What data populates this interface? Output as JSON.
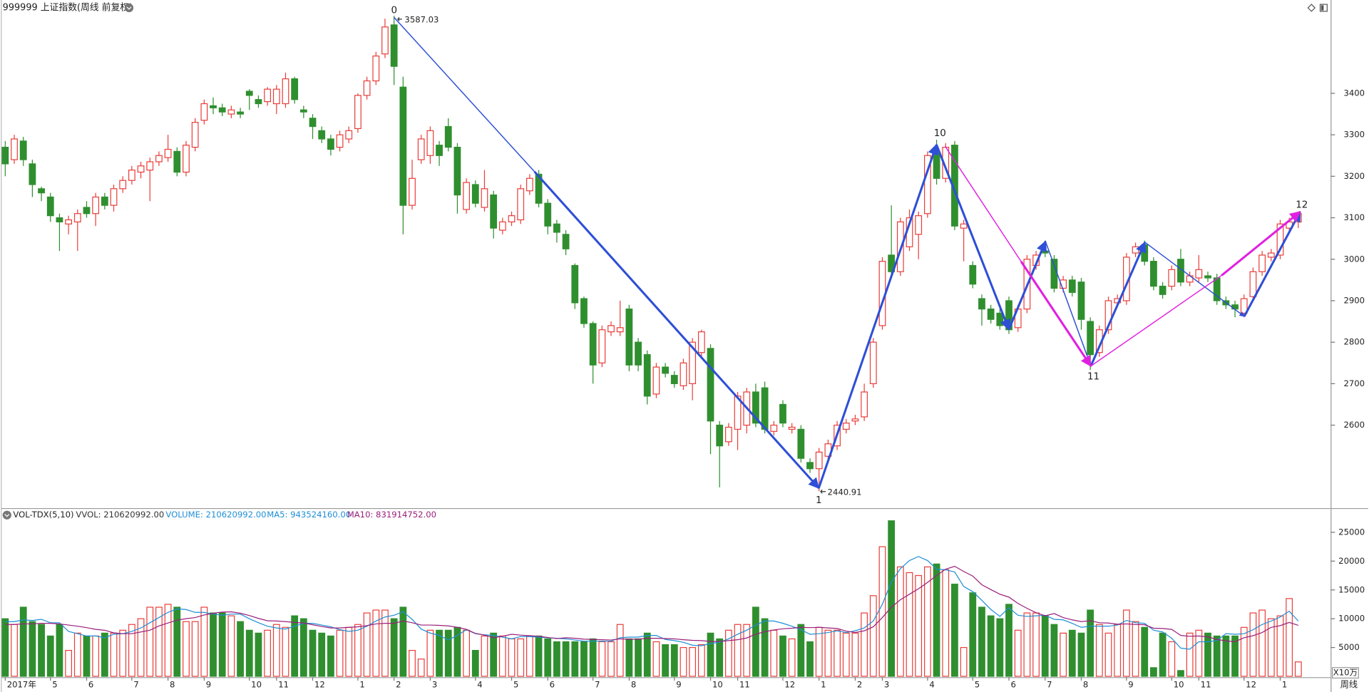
{
  "chart_data": [
    {
      "type": "candlestick",
      "title": "999999 上证指数(周线 前复权)",
      "up_color": "#e8403c",
      "down_color": "#2f8f2f",
      "ylim": [
        2400,
        3625
      ],
      "yticks": [
        2600,
        2700,
        2800,
        2900,
        3000,
        3100,
        3200,
        3300,
        3400
      ],
      "annotations": [
        "0",
        "3587.03",
        "1",
        "2440.91",
        "10",
        "11",
        "12"
      ],
      "categories": [
        "2017年",
        null,
        null,
        null,
        null,
        "5",
        null,
        null,
        null,
        "6",
        null,
        null,
        null,
        null,
        "7",
        null,
        null,
        null,
        "8",
        null,
        null,
        null,
        "9",
        null,
        null,
        null,
        null,
        "10",
        null,
        null,
        "11",
        null,
        null,
        null,
        "12",
        null,
        null,
        null,
        null,
        "1",
        null,
        null,
        null,
        "2",
        null,
        null,
        null,
        "3",
        null,
        null,
        null,
        null,
        "4",
        null,
        null,
        null,
        "5",
        null,
        null,
        null,
        "6",
        null,
        null,
        null,
        null,
        "7",
        null,
        null,
        null,
        "8",
        null,
        null,
        null,
        null,
        "9",
        null,
        null,
        null,
        "10",
        null,
        null,
        "11",
        null,
        null,
        null,
        null,
        "12",
        null,
        null,
        null,
        "1",
        null,
        null,
        null,
        "2",
        null,
        null,
        "3",
        null,
        null,
        null,
        null,
        "4",
        null,
        null,
        null,
        null,
        "5",
        null,
        null,
        null,
        "6",
        null,
        null,
        null,
        "7",
        null,
        null,
        null,
        "8",
        null,
        null,
        null,
        null,
        "9",
        null,
        null,
        null,
        null,
        "10",
        null,
        null,
        "11",
        null,
        null,
        null,
        null,
        "12",
        null,
        null,
        null,
        "1",
        null,
        null
      ],
      "open": [
        3270,
        3240,
        3285,
        3230,
        3170,
        3150,
        3100,
        3085,
        3090,
        3125,
        3110,
        3150,
        3130,
        3170,
        3190,
        3210,
        3215,
        3235,
        3245,
        3260,
        3210,
        3270,
        3335,
        3370,
        3365,
        3350,
        3355,
        3405,
        3385,
        3380,
        3375,
        3375,
        3435,
        3360,
        3340,
        3310,
        3290,
        3270,
        3290,
        3315,
        3395,
        3430,
        3495,
        3565,
        3415,
        3130,
        3240,
        3250,
        3275,
        3320,
        3270,
        3120,
        3180,
        3125,
        3155,
        3070,
        3090,
        3095,
        3165,
        3205,
        3135,
        3085,
        3060,
        2985,
        2905,
        2845,
        2750,
        2825,
        2825,
        2880,
        2800,
        2770,
        2675,
        2740,
        2720,
        2695,
        2700,
        2775,
        2785,
        2600,
        2560,
        2590,
        2600,
        2680,
        2690,
        2585,
        2650,
        2590,
        2590,
        2510,
        2495,
        2525,
        2550,
        2590,
        2610,
        2620,
        2700,
        2840,
        3010,
        2970,
        3030,
        3060,
        3110,
        3260,
        3195,
        3275,
        3075,
        2985,
        2905,
        2880,
        2870,
        2900,
        2835,
        2880,
        2985,
        3020,
        3000,
        2930,
        2950,
        2945,
        2850,
        2775,
        2830,
        2895,
        2900,
        3015,
        3035,
        2995,
        2935,
        2935,
        3000,
        2945,
        2955,
        2960,
        2955,
        2900,
        2890,
        2870,
        2910,
        2970,
        3005,
        3010,
        3075,
        3090
      ],
      "high": [
        3285,
        3300,
        3295,
        3240,
        3175,
        3160,
        3110,
        3105,
        3120,
        3140,
        3160,
        3160,
        3180,
        3200,
        3225,
        3235,
        3245,
        3260,
        3300,
        3270,
        3285,
        3340,
        3385,
        3390,
        3375,
        3370,
        3365,
        3410,
        3395,
        3415,
        3420,
        3450,
        3440,
        3370,
        3350,
        3320,
        3300,
        3310,
        3320,
        3400,
        3440,
        3500,
        3580,
        3587.03,
        3440,
        3240,
        3300,
        3320,
        3285,
        3340,
        3280,
        3195,
        3190,
        3215,
        3165,
        3100,
        3115,
        3180,
        3205,
        3215,
        3145,
        3095,
        3070,
        2990,
        2910,
        2850,
        2840,
        2850,
        2900,
        2890,
        2810,
        2780,
        2750,
        2750,
        2730,
        2760,
        2810,
        2830,
        2795,
        2610,
        2605,
        2680,
        2690,
        2700,
        2705,
        2610,
        2660,
        2605,
        2600,
        2520,
        2545,
        2565,
        2610,
        2615,
        2625,
        2700,
        2810,
        3005,
        3130,
        3100,
        3120,
        3115,
        3260,
        3288,
        3280,
        3285,
        3095,
        2995,
        2915,
        2890,
        2880,
        2910,
        2890,
        3010,
        3020,
        3045,
        3010,
        2960,
        2960,
        2955,
        2860,
        2840,
        2910,
        2915,
        3015,
        3040,
        3045,
        3005,
        2945,
        2985,
        3025,
        2970,
        3010,
        2970,
        2965,
        2910,
        2900,
        2915,
        2980,
        3020,
        3025,
        3095,
        3100,
        3115
      ],
      "low": [
        3200,
        3230,
        3225,
        3150,
        3140,
        3090,
        3020,
        3060,
        3020,
        3100,
        3080,
        3120,
        3115,
        3160,
        3180,
        3195,
        3140,
        3225,
        3235,
        3200,
        3200,
        3260,
        3325,
        3350,
        3345,
        3340,
        3340,
        3360,
        3365,
        3370,
        3350,
        3365,
        3375,
        3340,
        3290,
        3280,
        3250,
        3260,
        3280,
        3305,
        3385,
        3420,
        3485,
        3420,
        3060,
        3120,
        3230,
        3230,
        3225,
        3260,
        3110,
        3110,
        3125,
        3115,
        3050,
        3060,
        3080,
        3085,
        3155,
        3125,
        3060,
        3040,
        3010,
        2880,
        2835,
        2700,
        2740,
        2815,
        2815,
        2730,
        2730,
        2650,
        2665,
        2715,
        2690,
        2685,
        2660,
        2765,
        2530,
        2450,
        2550,
        2540,
        2580,
        2595,
        2580,
        2575,
        2595,
        2580,
        2510,
        2485,
        2440.91,
        2515,
        2540,
        2580,
        2600,
        2610,
        2690,
        2830,
        2955,
        2960,
        3020,
        3000,
        3100,
        3180,
        3185,
        3070,
        2995,
        2930,
        2840,
        2845,
        2830,
        2820,
        2825,
        2870,
        2975,
        3005,
        2920,
        2920,
        2910,
        2830,
        2733,
        2765,
        2820,
        2885,
        2890,
        3005,
        2985,
        2925,
        2905,
        2925,
        2935,
        2935,
        2945,
        2945,
        2890,
        2880,
        2860,
        2860,
        2900,
        2960,
        2995,
        3000,
        3065,
        3075
      ],
      "close": [
        3230,
        3290,
        3240,
        3180,
        3160,
        3105,
        3090,
        3095,
        3110,
        3110,
        3150,
        3130,
        3170,
        3190,
        3215,
        3225,
        3235,
        3250,
        3265,
        3210,
        3275,
        3330,
        3375,
        3365,
        3355,
        3360,
        3350,
        3395,
        3375,
        3410,
        3410,
        3435,
        3385,
        3355,
        3320,
        3290,
        3265,
        3300,
        3310,
        3395,
        3430,
        3490,
        3560,
        3465,
        3130,
        3195,
        3290,
        3310,
        3250,
        3270,
        3155,
        3185,
        3135,
        3170,
        3075,
        3090,
        3105,
        3170,
        3195,
        3135,
        3080,
        3065,
        3025,
        2895,
        2845,
        2745,
        2830,
        2840,
        2835,
        2745,
        2745,
        2670,
        2740,
        2725,
        2700,
        2750,
        2800,
        2825,
        2610,
        2550,
        2595,
        2670,
        2680,
        2605,
        2590,
        2600,
        2605,
        2595,
        2520,
        2495,
        2535,
        2555,
        2600,
        2605,
        2615,
        2680,
        2800,
        2995,
        2970,
        3090,
        3100,
        3105,
        3250,
        3195,
        3270,
        3080,
        3085,
        2940,
        2880,
        2855,
        2840,
        2830,
        2880,
        3000,
        3010,
        3015,
        2930,
        2950,
        2920,
        2855,
        2770,
        2830,
        2900,
        2905,
        3005,
        3030,
        2995,
        2935,
        2915,
        2975,
        2945,
        2960,
        2975,
        2955,
        2900,
        2890,
        2880,
        2905,
        2970,
        3010,
        3015,
        3085,
        3090,
        3110
      ]
    },
    {
      "type": "bar",
      "title": "VOL-TDX(5,10)",
      "legend": [
        {
          "text": "VVOL: 210620992.00",
          "color": "#333333"
        },
        {
          "text": "VOLUME: 210620992.00",
          "color": "#1f8fd6"
        },
        {
          "text": "MA5: 943524160.00",
          "color": "#1f8fd6"
        },
        {
          "text": "MA10: 831914752.00",
          "color": "#9a1f7c"
        }
      ],
      "unit_label": "X10万",
      "period_label": "周线",
      "ylim": [
        0,
        28900
      ],
      "yticks": [
        5000,
        10000,
        15000,
        20000,
        25000
      ],
      "series": [
        {
          "values": [
            10000,
            9000,
            12000,
            9500,
            9000,
            7000,
            9000,
            4500,
            7500,
            7000,
            7000,
            7500,
            7500,
            8000,
            9000,
            10000,
            12000,
            12000,
            12500,
            12000,
            9500,
            9500,
            12000,
            11000,
            11000,
            10500,
            9500,
            8000,
            7500,
            8000,
            9000,
            8500,
            10500,
            10000,
            8000,
            7500,
            7000,
            8000,
            8500,
            9000,
            11000,
            11500,
            11500,
            10000,
            12000,
            4500,
            3000,
            8000,
            8000,
            8000,
            8500,
            8000,
            4500,
            7000,
            7500,
            7000,
            6500,
            6500,
            7000,
            7000,
            6500,
            6000,
            6000,
            6000,
            6000,
            6500,
            6000,
            6000,
            9000,
            6500,
            6500,
            7500,
            6000,
            5500,
            5500,
            5000,
            5000,
            5500,
            7500,
            6500,
            8000,
            9000,
            9000,
            12000,
            10000,
            8000,
            7000,
            6500,
            9000,
            6000,
            8500,
            8000,
            8000,
            7500,
            7500,
            11000,
            14000,
            22500,
            27000,
            19000,
            18000,
            17500,
            19000,
            19500,
            18500,
            16000,
            5000,
            14500,
            12000,
            10500,
            10000,
            12500,
            8000,
            11000,
            11000,
            10500,
            9000,
            7500,
            8000,
            7500,
            11500,
            9000,
            7500,
            9000,
            11500,
            9500,
            8500,
            1500,
            7500,
            6000,
            1000,
            7500,
            8000,
            7500,
            7000,
            7000,
            7000,
            8500,
            11000,
            11500,
            10000,
            10500,
            13500,
            2500
          ]
        },
        {
          "color": "#1f8fd6",
          "values": [
            9500,
            9500,
            9800,
            9700,
            9900,
            9300,
            9300,
            7800,
            7400,
            7000,
            7000,
            6700,
            7300,
            7400,
            7800,
            8400,
            9300,
            10200,
            11100,
            11700,
            11600,
            11100,
            11100,
            10800,
            10600,
            10800,
            10800,
            10000,
            9300,
            8700,
            8400,
            8200,
            8700,
            9200,
            9200,
            8900,
            8600,
            8100,
            7800,
            8000,
            8700,
            9600,
            10300,
            10600,
            11200,
            9900,
            8200,
            7500,
            7100,
            6300,
            7100,
            8100,
            7400,
            7200,
            7100,
            6800,
            6500,
            6900,
            6900,
            6800,
            6700,
            6600,
            6500,
            6300,
            6100,
            6100,
            6100,
            6100,
            6700,
            6800,
            6800,
            7100,
            7100,
            6400,
            6200,
            5900,
            5400,
            5300,
            5700,
            5900,
            6500,
            7300,
            8000,
            8900,
            9600,
            9600,
            9200,
            8700,
            8100,
            7300,
            7400,
            7600,
            7900,
            7600,
            7900,
            8400,
            9600,
            12500,
            16400,
            18700,
            20100,
            20800,
            20100,
            18600,
            18500,
            18100,
            15600,
            14700,
            13200,
            11600,
            10400,
            11900,
            10600,
            10400,
            10500,
            10600,
            9900,
            9800,
            9200,
            8500,
            8700,
            8700,
            8700,
            8900,
            9700,
            9300,
            9200,
            8000,
            7700,
            6600,
            4900,
            4700,
            6000,
            6000,
            6200,
            7400,
            7300,
            7400,
            8100,
            9000,
            9600,
            10300,
            11300,
            9600
          ]
        },
        {
          "color": "#9a1f7c",
          "values": [
            9000,
            9000,
            9100,
            9100,
            9200,
            9200,
            9100,
            8900,
            8700,
            8450,
            8150,
            8000,
            7550,
            7400,
            7400,
            7700,
            8000,
            8750,
            9250,
            9750,
            10000,
            10200,
            10650,
            10950,
            11150,
            11200,
            10950,
            10550,
            10050,
            9650,
            9600,
            9500,
            9350,
            9250,
            8950,
            8650,
            8400,
            8400,
            8500,
            8600,
            8800,
            9100,
            9200,
            9200,
            9600,
            9300,
            8900,
            8900,
            8850,
            8750,
            8500,
            8150,
            7450,
            7150,
            6700,
            6950,
            7300,
            7150,
            7050,
            6950,
            6750,
            6550,
            6700,
            6600,
            6450,
            6400,
            6350,
            6300,
            6500,
            6450,
            6450,
            6600,
            6600,
            6550,
            6500,
            6350,
            6250,
            6200,
            6050,
            6050,
            6200,
            6350,
            6650,
            7300,
            7750,
            8050,
            8250,
            8350,
            8500,
            8450,
            8500,
            8400,
            8300,
            7850,
            7600,
            7900,
            8600,
            10200,
            12000,
            13300,
            14250,
            15200,
            16300,
            17500,
            18600,
            19100,
            18200,
            17400,
            15900,
            15050,
            14250,
            13750,
            12650,
            11800,
            11050,
            10500,
            10900,
            10200,
            9800,
            9500,
            9650,
            9300,
            9250,
            9050,
            9100,
            9000,
            8950,
            8350,
            8300,
            8150,
            7100,
            6950,
            7000,
            6850,
            6400,
            6150,
            6000,
            6700,
            7050,
            7600,
            8500,
            8800,
            9350,
            8850
          ]
        }
      ]
    }
  ]
}
